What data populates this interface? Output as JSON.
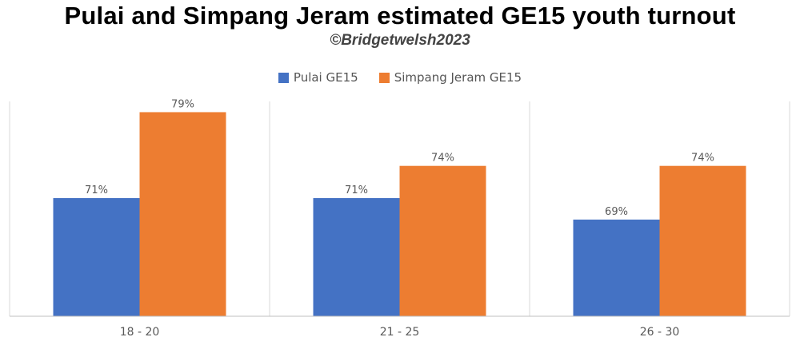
{
  "chart_data": {
    "type": "bar",
    "title": "Pulai and Simpang Jeram estimated GE15 youth turnout",
    "subtitle": "©Bridgetwelsh2023",
    "categories": [
      "18 - 20",
      "21 - 25",
      "26 - 30"
    ],
    "series": [
      {
        "name": "Pulai GE15",
        "values": [
          71,
          71,
          69
        ],
        "labels": [
          "71%",
          "71%",
          "69%"
        ],
        "color": "#4472C4"
      },
      {
        "name": "Simpang Jeram GE15",
        "values": [
          79,
          74,
          74
        ],
        "labels": [
          "79%",
          "74%",
          "74%"
        ],
        "color": "#ED7D31"
      }
    ],
    "ylim": [
      60,
      80
    ],
    "legend_position": "top",
    "grid": false
  }
}
